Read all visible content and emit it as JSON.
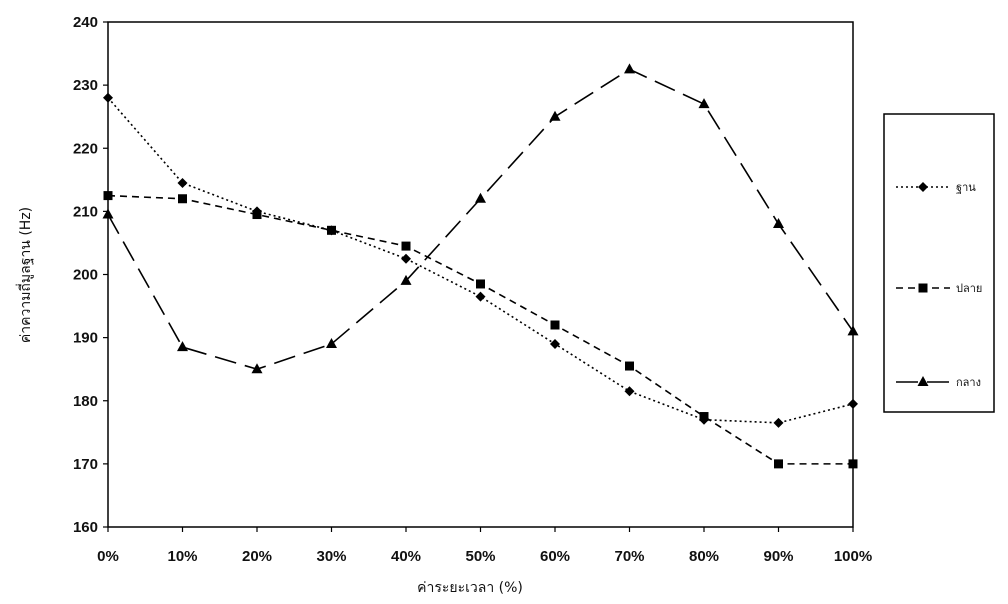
{
  "chart_data": {
    "type": "line",
    "xlabel": "ค่าระยะเวลา (%)",
    "ylabel": "ค่าความถี่มูลฐาน (Hz)",
    "categories": [
      "0%",
      "10%",
      "20%",
      "30%",
      "40%",
      "50%",
      "60%",
      "70%",
      "80%",
      "90%",
      "100%"
    ],
    "ylim": [
      160,
      240
    ],
    "yticks": [
      160,
      170,
      180,
      190,
      200,
      210,
      220,
      230,
      240
    ],
    "grid": false,
    "legend_position": "right",
    "series": [
      {
        "name": "ฐาน",
        "marker": "diamond",
        "dash": "dotted",
        "values": [
          228,
          214.5,
          210,
          207,
          202.5,
          196.5,
          189,
          181.5,
          177,
          176.5,
          179.5
        ]
      },
      {
        "name": "ปลาย",
        "marker": "square",
        "dash": "dashed",
        "values": [
          212.5,
          212,
          209.5,
          207,
          204.5,
          198.5,
          192,
          185.5,
          177.5,
          170,
          170
        ]
      },
      {
        "name": "กลาง",
        "marker": "triangle",
        "dash": "longdash",
        "values": [
          209.5,
          188.5,
          185,
          189,
          199,
          212,
          225,
          232.5,
          227,
          208,
          191
        ]
      }
    ]
  }
}
